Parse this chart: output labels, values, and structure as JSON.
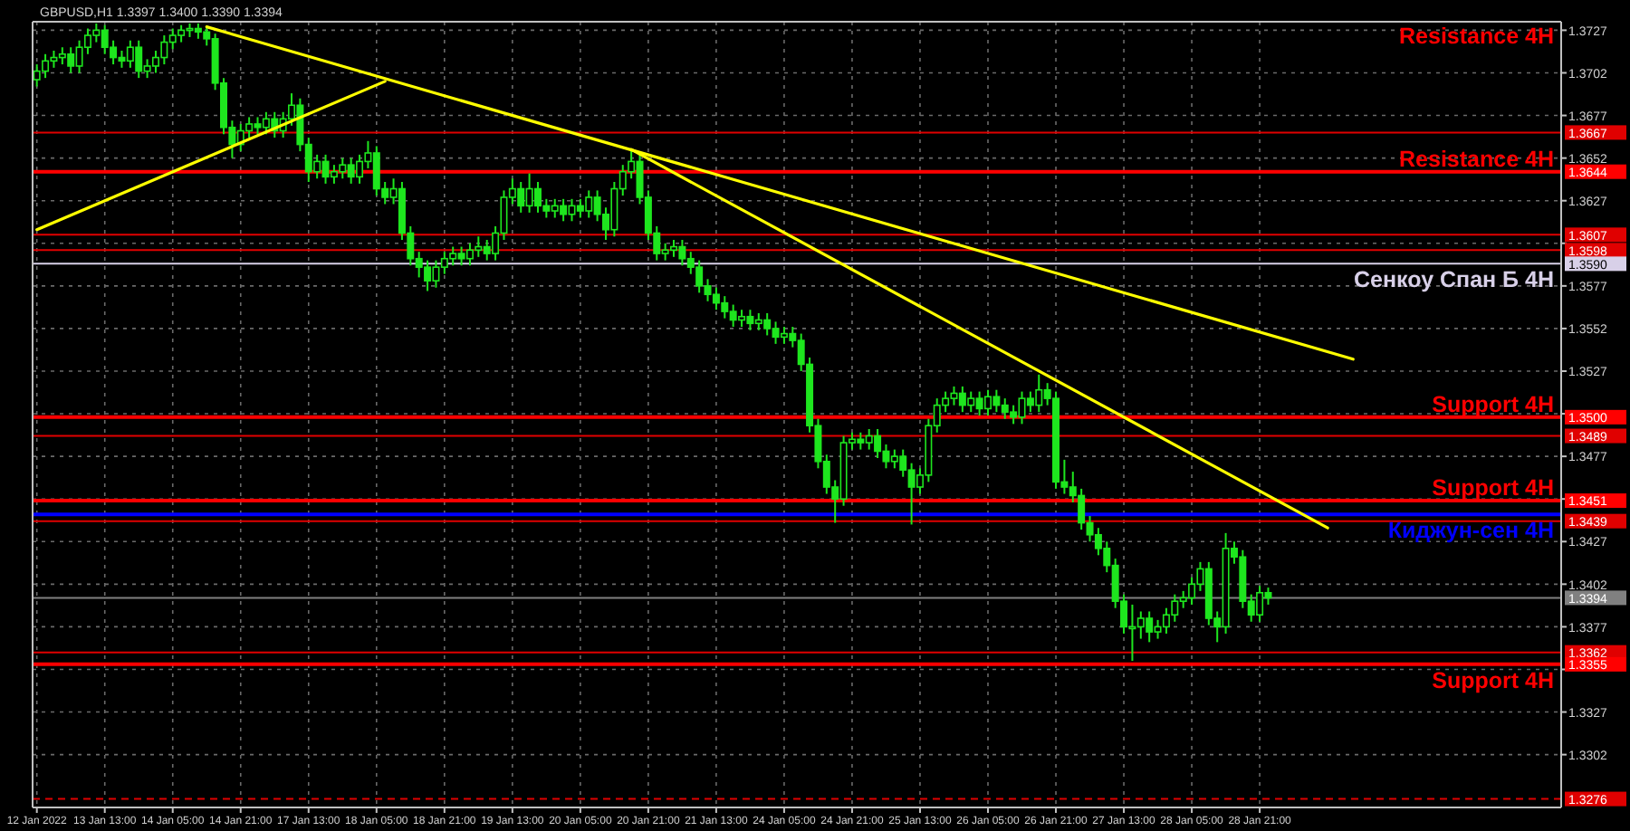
{
  "chart_data": {
    "type": "candlestick",
    "title": "GBPUSD,H1  1.3397 1.3400 1.3390 1.3394",
    "categories": [
      "12 Jan 2022",
      null,
      null,
      null,
      null,
      null,
      null,
      null,
      "13 Jan 13:00",
      null,
      null,
      null,
      null,
      null,
      null,
      null,
      "14 Jan 05:00",
      null,
      null,
      null,
      null,
      null,
      null,
      null,
      "14 Jan 21:00",
      null,
      null,
      null,
      null,
      null,
      null,
      null,
      "17 Jan 13:00",
      null,
      null,
      null,
      null,
      null,
      null,
      null,
      "18 Jan 05:00",
      null,
      null,
      null,
      null,
      null,
      null,
      null,
      "18 Jan 21:00",
      null,
      null,
      null,
      null,
      null,
      null,
      null,
      "19 Jan 13:00",
      null,
      null,
      null,
      null,
      null,
      null,
      null,
      "20 Jan 05:00",
      null,
      null,
      null,
      null,
      null,
      null,
      null,
      "20 Jan 21:00",
      null,
      null,
      null,
      null,
      null,
      null,
      null,
      "21 Jan 13:00",
      null,
      null,
      null,
      null,
      null,
      null,
      null,
      "24 Jan 05:00",
      null,
      null,
      null,
      null,
      null,
      null,
      null,
      "24 Jan 21:00",
      null,
      null,
      null,
      null,
      null,
      null,
      null,
      "25 Jan 13:00",
      null,
      null,
      null,
      null,
      null,
      null,
      null,
      "26 Jan 05:00",
      null,
      null,
      null,
      null,
      null,
      null,
      null,
      "26 Jan 21:00",
      null,
      null,
      null,
      null,
      null,
      null,
      null,
      "27 Jan 13:00",
      null,
      null,
      null,
      null,
      null,
      null,
      null,
      "28 Jan 05:00",
      null,
      null,
      null,
      null,
      null,
      null,
      null,
      "28 Jan 21:00",
      null,
      null,
      null,
      null,
      null,
      null,
      null,
      null,
      null,
      null,
      null,
      null,
      null,
      null,
      null,
      null,
      null,
      null,
      null,
      null,
      null,
      null,
      null,
      null,
      null,
      null,
      null,
      null,
      null,
      null,
      null,
      null,
      null,
      null,
      null
    ],
    "ylim": [
      1.3271,
      1.3732
    ],
    "yticks": [
      1.3302,
      1.3327,
      {
        "value": 1.3352,
        "label": null
      },
      1.3377,
      1.3402,
      1.3427,
      {
        "value": 1.3452,
        "label": null
      },
      1.3477,
      {
        "value": 1.3502,
        "label": null
      },
      1.3527,
      1.3552,
      1.3577,
      {
        "value": 1.3602,
        "label": null
      },
      1.3627,
      1.3652,
      1.3677,
      1.3702,
      1.3727
    ],
    "grid": true,
    "series": [
      {
        "type": "candlestick",
        "color": "#1ee61e",
        "ohlc": [
          [
            1.3698,
            1.3707,
            1.3694,
            1.3703
          ],
          [
            1.3703,
            1.3713,
            1.3699,
            1.3709
          ],
          [
            1.3709,
            1.3715,
            1.3705,
            1.3711
          ],
          [
            1.3711,
            1.3717,
            1.3707,
            1.3713
          ],
          [
            1.3713,
            1.3717,
            1.3702,
            1.3706
          ],
          [
            1.3706,
            1.3721,
            1.3702,
            1.3717
          ],
          [
            1.3717,
            1.3728,
            1.3713,
            1.3724
          ],
          [
            1.3724,
            1.3731,
            1.372,
            1.3727
          ],
          [
            1.3727,
            1.373,
            1.3713,
            1.3717
          ],
          [
            1.3717,
            1.3721,
            1.3707,
            1.3711
          ],
          [
            1.3711,
            1.3715,
            1.3705,
            1.3709
          ],
          [
            1.3709,
            1.3721,
            1.3705,
            1.3717
          ],
          [
            1.3717,
            1.3721,
            1.3699,
            1.3703
          ],
          [
            1.3703,
            1.371,
            1.3699,
            1.3706
          ],
          [
            1.3706,
            1.3715,
            1.3702,
            1.3711
          ],
          [
            1.3711,
            1.3724,
            1.3707,
            1.372
          ],
          [
            1.372,
            1.3728,
            1.3716,
            1.3724
          ],
          [
            1.3724,
            1.373,
            1.372,
            1.3727
          ],
          [
            1.3727,
            1.3731,
            1.3723,
            1.3728
          ],
          [
            1.3728,
            1.3731,
            1.3722,
            1.3726
          ],
          [
            1.3726,
            1.3729,
            1.3718,
            1.3722
          ],
          [
            1.3722,
            1.3725,
            1.3692,
            1.3696
          ],
          [
            1.3696,
            1.3699,
            1.3666,
            1.367
          ],
          [
            1.367,
            1.3674,
            1.3652,
            1.366
          ],
          [
            1.366,
            1.3672,
            1.3656,
            1.3668
          ],
          [
            1.3668,
            1.3676,
            1.3664,
            1.3672
          ],
          [
            1.3672,
            1.3676,
            1.3666,
            1.367
          ],
          [
            1.367,
            1.3679,
            1.3666,
            1.3675
          ],
          [
            1.3675,
            1.3679,
            1.3664,
            1.3668
          ],
          [
            1.3668,
            1.3679,
            1.3664,
            1.3675
          ],
          [
            1.3675,
            1.369,
            1.3671,
            1.3683
          ],
          [
            1.3683,
            1.3687,
            1.3656,
            1.366
          ],
          [
            1.366,
            1.3664,
            1.3638,
            1.3644
          ],
          [
            1.3644,
            1.3654,
            1.364,
            1.365
          ],
          [
            1.365,
            1.3654,
            1.3637,
            1.3641
          ],
          [
            1.3641,
            1.3648,
            1.3637,
            1.3644
          ],
          [
            1.3644,
            1.3652,
            1.364,
            1.3648
          ],
          [
            1.3648,
            1.3652,
            1.3637,
            1.3641
          ],
          [
            1.3641,
            1.3654,
            1.3637,
            1.365
          ],
          [
            1.365,
            1.3662,
            1.3646,
            1.3655
          ],
          [
            1.3655,
            1.3659,
            1.363,
            1.3634
          ],
          [
            1.3634,
            1.3638,
            1.3625,
            1.3629
          ],
          [
            1.3629,
            1.364,
            1.3625,
            1.3634
          ],
          [
            1.3634,
            1.3638,
            1.3604,
            1.3608
          ],
          [
            1.3608,
            1.3612,
            1.3589,
            1.3593
          ],
          [
            1.3593,
            1.3597,
            1.3582,
            1.3588
          ],
          [
            1.3588,
            1.3592,
            1.3574,
            1.358
          ],
          [
            1.358,
            1.3592,
            1.3576,
            1.3588
          ],
          [
            1.3588,
            1.3597,
            1.3584,
            1.3593
          ],
          [
            1.3593,
            1.36,
            1.3589,
            1.3596
          ],
          [
            1.3596,
            1.36,
            1.3589,
            1.3593
          ],
          [
            1.3593,
            1.3602,
            1.3589,
            1.3598
          ],
          [
            1.3598,
            1.3606,
            1.3594,
            1.36
          ],
          [
            1.36,
            1.3604,
            1.3592,
            1.3596
          ],
          [
            1.3596,
            1.3612,
            1.3592,
            1.3608
          ],
          [
            1.3608,
            1.3633,
            1.3604,
            1.3629
          ],
          [
            1.3629,
            1.364,
            1.3625,
            1.3634
          ],
          [
            1.3634,
            1.3638,
            1.362,
            1.3624
          ],
          [
            1.3624,
            1.3643,
            1.362,
            1.3634
          ],
          [
            1.3634,
            1.3638,
            1.362,
            1.3624
          ],
          [
            1.3624,
            1.3628,
            1.3617,
            1.3621
          ],
          [
            1.3621,
            1.3628,
            1.3617,
            1.3624
          ],
          [
            1.3624,
            1.3628,
            1.3615,
            1.3619
          ],
          [
            1.3619,
            1.3628,
            1.3615,
            1.3624
          ],
          [
            1.3624,
            1.3628,
            1.3617,
            1.3621
          ],
          [
            1.3621,
            1.3633,
            1.3617,
            1.3629
          ],
          [
            1.3629,
            1.3633,
            1.3615,
            1.3619
          ],
          [
            1.3619,
            1.3623,
            1.3604,
            1.361
          ],
          [
            1.361,
            1.3638,
            1.3606,
            1.3634
          ],
          [
            1.3634,
            1.3648,
            1.363,
            1.3644
          ],
          [
            1.3644,
            1.3657,
            1.364,
            1.365
          ],
          [
            1.365,
            1.3654,
            1.3625,
            1.3629
          ],
          [
            1.3629,
            1.3633,
            1.3604,
            1.3608
          ],
          [
            1.3608,
            1.3612,
            1.3592,
            1.3596
          ],
          [
            1.3596,
            1.3602,
            1.3592,
            1.3598
          ],
          [
            1.3598,
            1.3604,
            1.3594,
            1.36
          ],
          [
            1.36,
            1.3604,
            1.3589,
            1.3593
          ],
          [
            1.3593,
            1.3597,
            1.3584,
            1.3588
          ],
          [
            1.3588,
            1.3592,
            1.3573,
            1.3577
          ],
          [
            1.3577,
            1.3581,
            1.3568,
            1.3572
          ],
          [
            1.3572,
            1.3576,
            1.3563,
            1.3567
          ],
          [
            1.3567,
            1.3571,
            1.3558,
            1.3562
          ],
          [
            1.3562,
            1.3566,
            1.3553,
            1.3557
          ],
          [
            1.3557,
            1.3563,
            1.3553,
            1.3559
          ],
          [
            1.3559,
            1.3563,
            1.3551,
            1.3555
          ],
          [
            1.3555,
            1.3561,
            1.3551,
            1.3557
          ],
          [
            1.3557,
            1.3561,
            1.3548,
            1.3552
          ],
          [
            1.3552,
            1.3556,
            1.3543,
            1.3547
          ],
          [
            1.3547,
            1.3553,
            1.3543,
            1.3549
          ],
          [
            1.3549,
            1.3553,
            1.3541,
            1.3545
          ],
          [
            1.3545,
            1.3549,
            1.3527,
            1.3531
          ],
          [
            1.3531,
            1.3535,
            1.3491,
            1.3495
          ],
          [
            1.3495,
            1.3499,
            1.347,
            1.3474
          ],
          [
            1.3474,
            1.3478,
            1.3455,
            1.3459
          ],
          [
            1.3459,
            1.3463,
            1.3438,
            1.3452
          ],
          [
            1.3452,
            1.3489,
            1.3448,
            1.3485
          ],
          [
            1.3485,
            1.3491,
            1.3481,
            1.3487
          ],
          [
            1.3487,
            1.3491,
            1.3481,
            1.3485
          ],
          [
            1.3485,
            1.3493,
            1.3481,
            1.3489
          ],
          [
            1.3489,
            1.3493,
            1.3476,
            1.348
          ],
          [
            1.348,
            1.3484,
            1.347,
            1.3474
          ],
          [
            1.3474,
            1.3481,
            1.347,
            1.3477
          ],
          [
            1.3477,
            1.3481,
            1.3465,
            1.3469
          ],
          [
            1.3469,
            1.3473,
            1.3437,
            1.3459
          ],
          [
            1.3459,
            1.347,
            1.3455,
            1.3466
          ],
          [
            1.3466,
            1.3499,
            1.3462,
            1.3495
          ],
          [
            1.3495,
            1.3511,
            1.3491,
            1.3507
          ],
          [
            1.3507,
            1.3515,
            1.3503,
            1.3511
          ],
          [
            1.3511,
            1.3518,
            1.3507,
            1.3514
          ],
          [
            1.3514,
            1.3518,
            1.3503,
            1.3507
          ],
          [
            1.3507,
            1.3515,
            1.3503,
            1.3511
          ],
          [
            1.3511,
            1.3515,
            1.3501,
            1.3505
          ],
          [
            1.3505,
            1.3516,
            1.3501,
            1.3512
          ],
          [
            1.3512,
            1.3516,
            1.3503,
            1.3507
          ],
          [
            1.3507,
            1.3511,
            1.3499,
            1.3503
          ],
          [
            1.3503,
            1.3507,
            1.3496,
            1.35
          ],
          [
            1.35,
            1.3515,
            1.3496,
            1.3511
          ],
          [
            1.3511,
            1.3515,
            1.3503,
            1.3507
          ],
          [
            1.3507,
            1.3525,
            1.3503,
            1.3516
          ],
          [
            1.3516,
            1.352,
            1.3507,
            1.3511
          ],
          [
            1.3511,
            1.3515,
            1.3458,
            1.3462
          ],
          [
            1.3462,
            1.3475,
            1.3455,
            1.3459
          ],
          [
            1.3459,
            1.3468,
            1.345,
            1.3454
          ],
          [
            1.3454,
            1.3458,
            1.3434,
            1.3438
          ],
          [
            1.3438,
            1.3442,
            1.3427,
            1.3431
          ],
          [
            1.3431,
            1.3435,
            1.3419,
            1.3423
          ],
          [
            1.3423,
            1.3427,
            1.3409,
            1.3413
          ],
          [
            1.3413,
            1.3417,
            1.3388,
            1.3392
          ],
          [
            1.3392,
            1.3396,
            1.3373,
            1.3377
          ],
          [
            1.3377,
            1.339,
            1.3357,
            1.3377
          ],
          [
            1.3377,
            1.3386,
            1.337,
            1.3382
          ],
          [
            1.3382,
            1.3386,
            1.3368,
            1.3374
          ],
          [
            1.3374,
            1.3381,
            1.337,
            1.3377
          ],
          [
            1.3377,
            1.3388,
            1.3373,
            1.3384
          ],
          [
            1.3384,
            1.3396,
            1.338,
            1.3392
          ],
          [
            1.3392,
            1.3398,
            1.3388,
            1.3394
          ],
          [
            1.3394,
            1.3406,
            1.339,
            1.3402
          ],
          [
            1.3402,
            1.3415,
            1.3398,
            1.3411
          ],
          [
            1.3411,
            1.3415,
            1.3378,
            1.3382
          ],
          [
            1.3382,
            1.3386,
            1.3368,
            1.3377
          ],
          [
            1.3377,
            1.3432,
            1.3373,
            1.3423
          ],
          [
            1.3423,
            1.3427,
            1.3414,
            1.3418
          ],
          [
            1.3418,
            1.3422,
            1.3388,
            1.3392
          ],
          [
            1.3392,
            1.3396,
            1.338,
            1.3384
          ],
          [
            1.3384,
            1.3401,
            1.338,
            1.3397
          ],
          [
            1.3397,
            1.34,
            1.339,
            1.3394
          ],
          null,
          null,
          null,
          null,
          null,
          null,
          null,
          null,
          null,
          null,
          null,
          null,
          null,
          null,
          null,
          null,
          null,
          null,
          null,
          null,
          null,
          null,
          null,
          null,
          null,
          null,
          null,
          null,
          null,
          null,
          null,
          null,
          null,
          null
        ]
      },
      {
        "type": "line",
        "color": "#ffff00",
        "values": [
          1.361,
          null,
          null,
          null,
          null,
          null,
          null,
          null,
          null,
          null,
          null,
          null,
          null,
          null,
          null,
          null,
          null,
          null,
          null,
          null,
          null,
          null,
          null,
          null,
          null,
          null,
          null,
          null,
          null,
          null,
          null,
          null,
          null,
          null,
          null,
          null,
          null,
          null,
          null,
          null,
          null,
          1.3697,
          null,
          null,
          null,
          null,
          null,
          null,
          null,
          null,
          null,
          null,
          null,
          null,
          null,
          null,
          null,
          null,
          null,
          null,
          null,
          null,
          null,
          null,
          null,
          null,
          null,
          null,
          null,
          null,
          null,
          null,
          null,
          null,
          null,
          null,
          null,
          null,
          null,
          null,
          null,
          null,
          null,
          null,
          null,
          null,
          null,
          null,
          null,
          null,
          null,
          null,
          null,
          null,
          null,
          null,
          null,
          null,
          null,
          null,
          null,
          null,
          null,
          null,
          null,
          null,
          null,
          null,
          null,
          null,
          null,
          null,
          null,
          null,
          null,
          null,
          null,
          null,
          null,
          null,
          null,
          null,
          null,
          null,
          null,
          null,
          null,
          null,
          null,
          null,
          null,
          null,
          null,
          null,
          null,
          null,
          null,
          null,
          null,
          null,
          null,
          null,
          null,
          null,
          null,
          null,
          null,
          null,
          null,
          null,
          null,
          null,
          null,
          null,
          null,
          null,
          null,
          null,
          null,
          null,
          null,
          null,
          null,
          null,
          null,
          null,
          null,
          null,
          null,
          null,
          null,
          null,
          null,
          null,
          null,
          null,
          null,
          null,
          null,
          null
        ]
      },
      {
        "type": "line",
        "color": "#ffff00",
        "values": [
          null,
          null,
          null,
          null,
          null,
          null,
          null,
          null,
          null,
          null,
          null,
          null,
          null,
          null,
          null,
          null,
          null,
          null,
          null,
          null,
          1.3729,
          null,
          null,
          null,
          null,
          null,
          null,
          null,
          null,
          null,
          null,
          null,
          null,
          null,
          null,
          null,
          null,
          null,
          null,
          null,
          null,
          null,
          null,
          null,
          null,
          null,
          null,
          null,
          null,
          null,
          null,
          null,
          null,
          null,
          null,
          null,
          null,
          null,
          null,
          null,
          null,
          null,
          null,
          null,
          null,
          null,
          null,
          null,
          null,
          null,
          null,
          null,
          null,
          null,
          null,
          null,
          null,
          null,
          null,
          null,
          null,
          null,
          null,
          null,
          null,
          null,
          null,
          null,
          null,
          null,
          null,
          null,
          null,
          null,
          null,
          null,
          null,
          null,
          null,
          null,
          null,
          null,
          null,
          null,
          null,
          null,
          null,
          null,
          null,
          null,
          null,
          null,
          null,
          null,
          null,
          null,
          null,
          null,
          null,
          null,
          null,
          null,
          null,
          null,
          null,
          null,
          null,
          null,
          null,
          null,
          null,
          null,
          null,
          null,
          null,
          null,
          null,
          null,
          null,
          null,
          null,
          null,
          null,
          null,
          null,
          null,
          null,
          null,
          null,
          null,
          null,
          null,
          null,
          null,
          null,
          1.3534,
          null,
          null,
          null,
          null,
          null,
          null,
          null,
          null,
          null,
          null,
          null,
          null,
          null,
          null,
          null,
          null,
          null,
          null,
          null,
          null,
          null,
          null,
          null,
          null
        ]
      },
      {
        "type": "line",
        "color": "#ffff00",
        "values": [
          null,
          null,
          null,
          null,
          null,
          null,
          null,
          null,
          null,
          null,
          null,
          null,
          null,
          null,
          null,
          null,
          null,
          null,
          null,
          null,
          null,
          null,
          null,
          null,
          null,
          null,
          null,
          null,
          null,
          null,
          null,
          null,
          null,
          null,
          null,
          null,
          null,
          null,
          null,
          null,
          null,
          null,
          null,
          null,
          null,
          null,
          null,
          null,
          null,
          null,
          null,
          null,
          null,
          null,
          null,
          null,
          null,
          null,
          null,
          null,
          null,
          null,
          null,
          null,
          null,
          null,
          null,
          null,
          null,
          null,
          1.3657,
          null,
          null,
          null,
          null,
          null,
          null,
          null,
          null,
          null,
          null,
          null,
          null,
          null,
          null,
          null,
          null,
          null,
          null,
          null,
          null,
          null,
          null,
          null,
          null,
          null,
          null,
          null,
          null,
          null,
          null,
          null,
          null,
          null,
          null,
          null,
          null,
          null,
          null,
          null,
          null,
          null,
          null,
          null,
          null,
          null,
          null,
          null,
          null,
          null,
          null,
          null,
          null,
          null,
          null,
          null,
          null,
          null,
          null,
          null,
          null,
          null,
          null,
          null,
          null,
          null,
          null,
          null,
          null,
          null,
          null,
          null,
          null,
          null,
          null,
          null,
          null,
          null,
          null,
          null,
          null,
          null,
          1.3435,
          null,
          null,
          null,
          null,
          null,
          null,
          null,
          null,
          null,
          null,
          null,
          null,
          null,
          null,
          null,
          null,
          null,
          null,
          null,
          null,
          null,
          null,
          null,
          null,
          null,
          null,
          null
        ]
      }
    ],
    "ref_lines": [
      {
        "axis": "y",
        "value": 1.3667,
        "label": "1.3667",
        "color": "#e00000"
      },
      {
        "axis": "y",
        "value": 1.3644,
        "label": "1.3644",
        "color": "#ff0000"
      },
      {
        "axis": "y",
        "value": 1.3607,
        "label": "1.3607",
        "color": "#e00000"
      },
      {
        "axis": "y",
        "value": 1.3598,
        "label": "1.3598",
        "color": "#e00000"
      },
      {
        "axis": "y",
        "value": 1.359,
        "label": "1.3590",
        "color": "#d8d0e8"
      },
      {
        "axis": "y",
        "value": 1.35,
        "label": "1.3500",
        "color": "#ff0000"
      },
      {
        "axis": "y",
        "value": 1.3489,
        "label": "1.3489",
        "color": "#e00000"
      },
      {
        "axis": "y",
        "value": 1.3451,
        "label": "1.3451",
        "color": "#ff0000"
      },
      {
        "axis": "y",
        "value": 1.3443,
        "label": null,
        "color": "#0000ff"
      },
      {
        "axis": "y",
        "value": 1.3439,
        "label": "1.3439",
        "color": "#e00000"
      },
      {
        "axis": "y",
        "value": 1.3394,
        "label": "1.3394",
        "color": "#808080"
      },
      {
        "axis": "y",
        "value": 1.3362,
        "label": "1.3362",
        "color": "#e00000"
      },
      {
        "axis": "y",
        "value": 1.3355,
        "label": "1.3355",
        "color": "#ff0000"
      },
      {
        "axis": "y",
        "value": 1.3276,
        "label": "1.3276",
        "color": "#e00000",
        "line_style": "dashed"
      }
    ],
    "annotations": [
      "Resistance 4H",
      {
        "text": "Resistance 4H",
        "y": 1.3644
      },
      {
        "text": "Сенкоу Спан Б 4H",
        "y": 1.359
      },
      {
        "text": "Support 4H",
        "y": 1.35
      },
      {
        "text": "Support 4H",
        "y": 1.3451
      },
      {
        "text": "Киджун-сен 4H",
        "y": 1.3443
      },
      {
        "text": "Support 4H",
        "y": 1.3355
      }
    ]
  }
}
